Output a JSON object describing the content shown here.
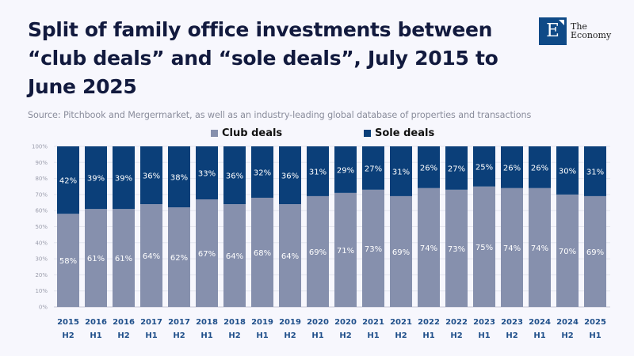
{
  "header": {
    "title": "Split of family office investments between “club deals” and “sole deals”, July 2015 to June 2025",
    "source": "Source: Pitchbook and Mergermarket, as well as an industry-leading global database of properties and transactions"
  },
  "logo": {
    "letter": "E",
    "line1": "The",
    "line2": "Economy",
    "color": "#0f4a87"
  },
  "colors": {
    "club": "#8690ad",
    "sole": "#0b3f79",
    "grid": "#e4e5ee",
    "axis": "#c9cad6"
  },
  "chart_data": {
    "type": "bar",
    "stacked": true,
    "title": "Split of family office investments between “club deals” and “sole deals”, July 2015 to June 2025",
    "xlabel": "",
    "ylabel": "",
    "ylim": [
      0,
      100
    ],
    "yticks": [
      0,
      10,
      20,
      30,
      40,
      50,
      60,
      70,
      80,
      90,
      100
    ],
    "ytick_labels": [
      "0%",
      "10%",
      "20%",
      "30%",
      "40%",
      "50%",
      "60%",
      "70%",
      "80%",
      "90%",
      "100%"
    ],
    "grid": true,
    "legend_position": "top-center",
    "categories": [
      [
        "2015",
        "H2"
      ],
      [
        "2016",
        "H1"
      ],
      [
        "2016",
        "H2"
      ],
      [
        "2017",
        "H1"
      ],
      [
        "2017",
        "H2"
      ],
      [
        "2018",
        "H1"
      ],
      [
        "2018",
        "H2"
      ],
      [
        "2019",
        "H1"
      ],
      [
        "2019",
        "H2"
      ],
      [
        "2020",
        "H1"
      ],
      [
        "2020",
        "H2"
      ],
      [
        "2021",
        "H1"
      ],
      [
        "2021",
        "H2"
      ],
      [
        "2022",
        "H1"
      ],
      [
        "2022",
        "H2"
      ],
      [
        "2023",
        "H1"
      ],
      [
        "2023",
        "H2"
      ],
      [
        "2024",
        "H1"
      ],
      [
        "2024",
        "H2"
      ],
      [
        "2025",
        "H1"
      ]
    ],
    "series": [
      {
        "name": "Club deals",
        "values": [
          58,
          61,
          61,
          64,
          62,
          67,
          64,
          68,
          64,
          69,
          71,
          73,
          69,
          74,
          73,
          75,
          74,
          74,
          70,
          69
        ]
      },
      {
        "name": "Sole deals",
        "values": [
          42,
          39,
          39,
          36,
          38,
          33,
          36,
          32,
          36,
          31,
          29,
          27,
          31,
          26,
          27,
          25,
          26,
          26,
          30,
          31
        ]
      }
    ]
  }
}
